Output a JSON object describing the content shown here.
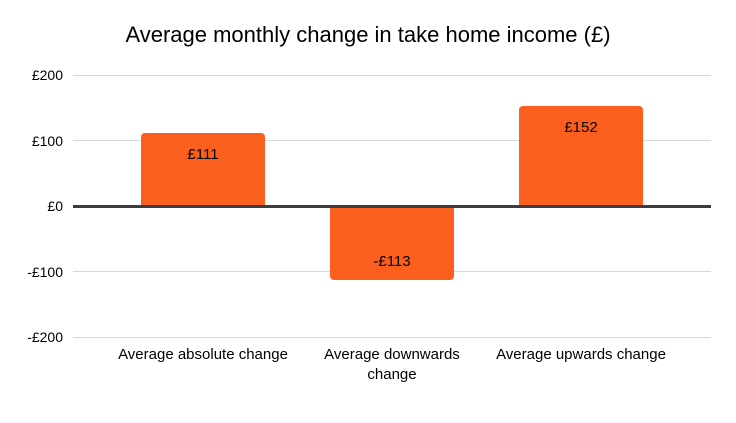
{
  "chart_data": {
    "type": "bar",
    "title": "Average monthly change in take home income (£)",
    "categories": [
      "Average absolute change",
      "Average downwards change",
      "Average upwards change"
    ],
    "values": [
      111,
      -113,
      152
    ],
    "value_labels": [
      "£111",
      "-£113",
      "£152"
    ],
    "y_ticks": [
      {
        "value": 200,
        "label": "£200"
      },
      {
        "value": 100,
        "label": "£100"
      },
      {
        "value": 0,
        "label": "£0"
      },
      {
        "value": -100,
        "label": "-£100"
      },
      {
        "value": -200,
        "label": "-£200"
      }
    ],
    "ylim": [
      -200,
      200
    ],
    "bar_color": "#fa5f1e",
    "zero_axis_color": "#3d3d3d",
    "gridline_color": "#d9d9d9",
    "grid": true,
    "legend": "none",
    "xlabel": "",
    "ylabel": ""
  }
}
